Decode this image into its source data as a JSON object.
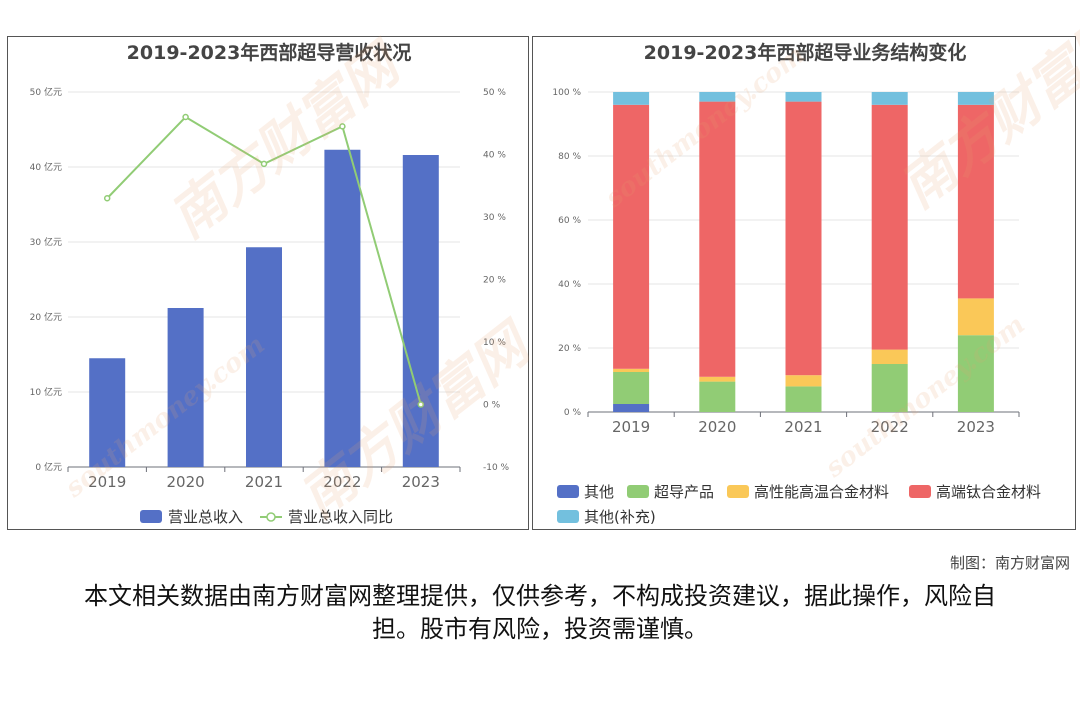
{
  "colors": {
    "revenue_bar": "#5470c6",
    "yoy_line": "#91cc75",
    "other": "#5470c6",
    "superconducting": "#91cc75",
    "high_temp_alloy": "#fac858",
    "titanium_alloy": "#ee6666",
    "other_supplement": "#73c0de",
    "grid": "#e6e6e6",
    "axis_text": "#666666"
  },
  "watermark": {
    "brand_cn": "南方财富网",
    "domain": "southmoney.com"
  },
  "credit": "制图：南方财富网",
  "disclaimer": "本文相关数据由南方财富网整理提供，仅供参考，不构成投资建议，据此操作，风险自担。股市有风险，投资需谨慎。",
  "chart_data": [
    {
      "type": "bar",
      "title": "2019-2023年西部超导营收状况",
      "categories": [
        "2019",
        "2020",
        "2021",
        "2022",
        "2023"
      ],
      "series": [
        {
          "name": "营业总收入",
          "type": "bar",
          "axis": "left",
          "values": [
            14.5,
            21.2,
            29.3,
            42.3,
            41.6
          ]
        },
        {
          "name": "营业总收入同比",
          "type": "line",
          "axis": "right",
          "values": [
            33,
            46,
            38.5,
            44.5,
            0
          ]
        }
      ],
      "y_left": {
        "ticks": [
          0,
          10,
          20,
          30,
          40,
          50
        ],
        "unit": "亿元",
        "ylim": [
          0,
          50
        ]
      },
      "y_right": {
        "ticks": [
          -10,
          0,
          10,
          20,
          30,
          40,
          50
        ],
        "unit": "%",
        "ylim": [
          -10,
          50
        ]
      },
      "grid": true,
      "legend": "bottom"
    },
    {
      "type": "bar",
      "stacked": true,
      "title": "2019-2023年西部超导业务结构变化",
      "categories": [
        "2019",
        "2020",
        "2021",
        "2022",
        "2023"
      ],
      "series": [
        {
          "name": "其他",
          "values": [
            2.5,
            0,
            0,
            0,
            0
          ]
        },
        {
          "name": "超导产品",
          "values": [
            10,
            9.5,
            8,
            15,
            24
          ]
        },
        {
          "name": "高性能高温合金材料",
          "values": [
            1,
            1.5,
            3.5,
            4.5,
            11.5
          ]
        },
        {
          "name": "高端钛合金材料",
          "values": [
            82.5,
            86,
            85.5,
            76.5,
            60.5
          ]
        },
        {
          "name": "其他(补充)",
          "values": [
            4,
            3,
            3,
            4,
            4
          ]
        }
      ],
      "y": {
        "ticks": [
          0,
          20,
          40,
          60,
          80,
          100
        ],
        "unit": "%",
        "ylim": [
          0,
          100
        ]
      },
      "grid": true,
      "legend": "bottom"
    }
  ]
}
